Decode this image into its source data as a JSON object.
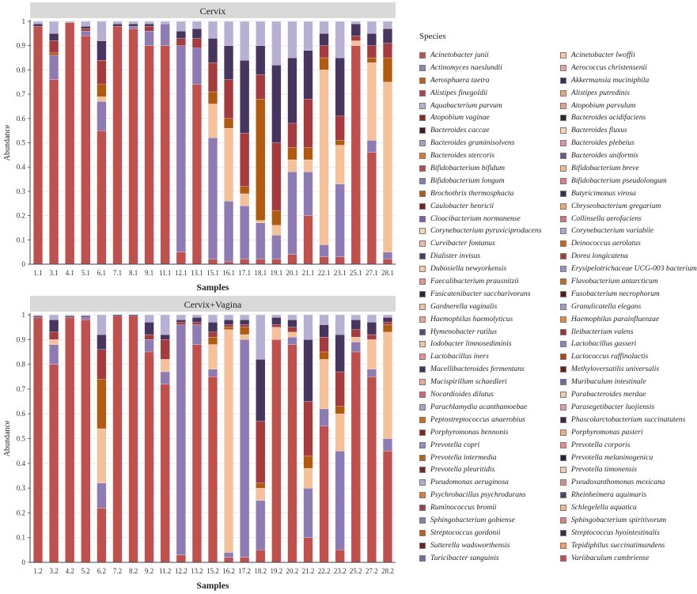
{
  "colors": {
    "panel_header_bg": "#d9d9d9",
    "axis": "#444444",
    "gridline": "#e6e6e6"
  },
  "legend": {
    "title": "Species",
    "items": [
      {
        "name": "Acinetobacter junii",
        "color": "#c0504d"
      },
      {
        "name": "Acinetobacter lwoffii",
        "color": "#f6c7a6"
      },
      {
        "name": "Actinomyces naeslundii",
        "color": "#9184b5"
      },
      {
        "name": "Aerococcus christensenii",
        "color": "#e8a2a6"
      },
      {
        "name": "Aerosphaera taetra",
        "color": "#c65c10"
      },
      {
        "name": "Akkermansia muciniphila",
        "color": "#3e2e57"
      },
      {
        "name": "Alistipes finegoldii",
        "color": "#b0404a"
      },
      {
        "name": "Alistipes putredinis",
        "color": "#eaa27e"
      },
      {
        "name": "Aquabacterium parvum",
        "color": "#b7b0d3"
      },
      {
        "name": "Atopobium parvulum",
        "color": "#f29b8b"
      },
      {
        "name": "Atopobium vaginae",
        "color": "#8b2a1a"
      },
      {
        "name": "Bacteroides acidifaciens",
        "color": "#2b2b2b"
      },
      {
        "name": "Bacteroides caccae",
        "color": "#4a1a22"
      },
      {
        "name": "Bacteroides fluxus",
        "color": "#f9d5b8"
      },
      {
        "name": "Bacteroides graminisolvens",
        "color": "#a99cc8"
      },
      {
        "name": "Bacteroides plebeius",
        "color": "#e3909a"
      },
      {
        "name": "Bacteroides stercoris",
        "color": "#e07726"
      },
      {
        "name": "Bacteroides uniformis",
        "color": "#6a5a8c"
      },
      {
        "name": "Bifidobacterium bifidum",
        "color": "#b9484c"
      },
      {
        "name": "Bifidobacterium breve",
        "color": "#f3b98e"
      },
      {
        "name": "Bifidobacterium longum",
        "color": "#8e7bb3"
      },
      {
        "name": "Bifidobacterium pseudolongum",
        "color": "#e37c82"
      },
      {
        "name": "Brochothrix thermosphacta",
        "color": "#b35a11"
      },
      {
        "name": "Butyricimonas virosa",
        "color": "#3f3050"
      },
      {
        "name": "Caulobacter henricii",
        "color": "#7a1f22"
      },
      {
        "name": "Chryseobacterium gregarium",
        "color": "#f3a56b"
      },
      {
        "name": "Cloacibacterium normanense",
        "color": "#7f5fa6"
      },
      {
        "name": "Collinsella aerofaciens",
        "color": "#d4707a"
      },
      {
        "name": "Corynebacterium pyruviciproducens",
        "color": "#fbd4b1"
      },
      {
        "name": "Corynebacterium variabile",
        "color": "#b3a5cf"
      },
      {
        "name": "Curvibacter fontanus",
        "color": "#f0b9a0"
      },
      {
        "name": "Deinococcus aerolatus",
        "color": "#d45f15"
      },
      {
        "name": "Dialister invisus",
        "color": "#4d3a6e"
      },
      {
        "name": "Dorea longicatena",
        "color": "#a63b3f"
      },
      {
        "name": "Dubosiella newyorkensis",
        "color": "#f8c9a2"
      },
      {
        "name": "Erysipelotrichaceae UCG-003 bacterium",
        "color": "#9d8fc2"
      },
      {
        "name": "Faecalibacterium prausnitzii",
        "color": "#e88f8f"
      },
      {
        "name": "Flavobacterium antarcticum",
        "color": "#c26b1e"
      },
      {
        "name": "Fusicatenibacter saccharivorans",
        "color": "#2f2442"
      },
      {
        "name": "Fusobacterium necrophorum",
        "color": "#5c1c1c"
      },
      {
        "name": "Gardnerella vaginalis",
        "color": "#f5c19a"
      },
      {
        "name": "Granulicatella elegans",
        "color": "#a497c9"
      },
      {
        "name": "Haemophilus haemolyticus",
        "color": "#f0a09a"
      },
      {
        "name": "Haemophilus parainfluenzae",
        "color": "#ef8a3a"
      },
      {
        "name": "Hymenobacter rutilus",
        "color": "#5b4985"
      },
      {
        "name": "Ileibacterium valens",
        "color": "#9d3337"
      },
      {
        "name": "Iodobacter limnosediminis",
        "color": "#f4c2a0"
      },
      {
        "name": "Lactobacillus gasseri",
        "color": "#8f82bd"
      },
      {
        "name": "Lactobacillus iners",
        "color": "#ec8f93"
      },
      {
        "name": "Lactococcus raffinolactis",
        "color": "#a9480f"
      },
      {
        "name": "Macellibacteroides fermentans",
        "color": "#473560"
      },
      {
        "name": "Methyloversatilis universalis",
        "color": "#6b1e1e"
      },
      {
        "name": "Mucispirillum schaedleri",
        "color": "#f3a28e"
      },
      {
        "name": "Muribaculum intestinale",
        "color": "#7866a3"
      },
      {
        "name": "Nocardioides dilutus",
        "color": "#d5656b"
      },
      {
        "name": "Parabacteroides merdae",
        "color": "#f7c8ab"
      },
      {
        "name": "Parachlamydia acanthamoebae",
        "color": "#ab9fcc"
      },
      {
        "name": "Parasegetibacter luojiensis",
        "color": "#e59aa2"
      },
      {
        "name": "Peptostreptococcus anaerobius",
        "color": "#d2681c"
      },
      {
        "name": "Phascolarctobacterium succinatutens",
        "color": "#39294f"
      },
      {
        "name": "Porphyromonas bennonis",
        "color": "#8a2527"
      },
      {
        "name": "Porphyromonas pasteri",
        "color": "#f4ae86"
      },
      {
        "name": "Prevotella copri",
        "color": "#9a88c4"
      },
      {
        "name": "Prevotella corporis",
        "color": "#e98b8b"
      },
      {
        "name": "Prevotella intermedia",
        "color": "#b8631a"
      },
      {
        "name": "Prevotella melaninogenica",
        "color": "#2a2036"
      },
      {
        "name": "Prevotella pleuritidis",
        "color": "#7d2628"
      },
      {
        "name": "Prevotella timonensis",
        "color": "#f7cca5"
      },
      {
        "name": "Pseudomonas aeruginosa",
        "color": "#b5a9d6"
      },
      {
        "name": "Pseudoxanthomonas mexicana",
        "color": "#df8790"
      },
      {
        "name": "Psychrobacillus psychrodurans",
        "color": "#e5762b"
      },
      {
        "name": "Rheinheimera aquimaris",
        "color": "#514274"
      },
      {
        "name": "Ruminococcus bromii",
        "color": "#a03d42"
      },
      {
        "name": "Schlegelella aquatica",
        "color": "#f5b48c"
      },
      {
        "name": "Sphingobacterium gobiense",
        "color": "#8b7ab6"
      },
      {
        "name": "Sphingobacterium spiritivorum",
        "color": "#e47f86"
      },
      {
        "name": "Streptococcus gordonii",
        "color": "#c55e12"
      },
      {
        "name": "Streptococcus hyointestinalis",
        "color": "#3a2c4f"
      },
      {
        "name": "Sutterella wadsworthensis",
        "color": "#6f1f21"
      },
      {
        "name": "Tepidiphilus succinatimandens",
        "color": "#f49a5c"
      },
      {
        "name": "Turicibacter sanguinis",
        "color": "#7c68a8"
      },
      {
        "name": "Variibaculum cambriense",
        "color": "#c9474d"
      }
    ]
  },
  "chart_data": [
    {
      "type": "bar",
      "stacked": true,
      "title": "Cervix",
      "xlabel": "Samples",
      "ylabel": "Abundance",
      "ylim": [
        0,
        1
      ],
      "yticks": [
        0,
        0.1,
        0.2,
        0.3,
        0.4,
        0.5,
        0.6,
        0.7,
        0.8,
        0.9,
        1
      ],
      "categories": [
        "1.1",
        "3.1",
        "4.1",
        "5.1",
        "6.1",
        "7.1",
        "8.1",
        "9.1",
        "11.1",
        "12.1",
        "13.1",
        "15.1",
        "16.1",
        "17.1",
        "18.1",
        "19.1",
        "20.1",
        "21.1",
        "22.1",
        "23.1",
        "25.1",
        "27.1",
        "28.1"
      ],
      "series": [
        {
          "name": "Acinetobacter junii",
          "values": [
            0.98,
            0.76,
            0.995,
            0.94,
            0.55,
            0.98,
            0.97,
            0.9,
            0.9,
            0.05,
            0.74,
            0.02,
            0.01,
            0.02,
            0.02,
            0.02,
            0.04,
            0.2,
            0.03,
            0.03,
            0.9,
            0.46,
            0.02
          ]
        },
        {
          "name": "Bifidobacterium longum",
          "values": [
            0,
            0.1,
            0,
            0.02,
            0.12,
            0,
            0.01,
            0.06,
            0.09,
            0.85,
            0.15,
            0.5,
            0.25,
            0.22,
            0.15,
            0.1,
            0.34,
            0.18,
            0.05,
            0.3,
            0,
            0.05,
            0.03
          ]
        },
        {
          "name": "Gardnerella vaginalis",
          "values": [
            0,
            0,
            0,
            0,
            0.02,
            0,
            0,
            0,
            0,
            0,
            0,
            0.14,
            0.3,
            0.05,
            0.01,
            0.04,
            0.05,
            0.05,
            0.72,
            0.16,
            0.02,
            0.32,
            0.7
          ]
        },
        {
          "name": "Brochothrix thermosphacta",
          "values": [
            0,
            0.01,
            0,
            0,
            0.05,
            0,
            0,
            0,
            0,
            0,
            0,
            0.05,
            0.04,
            0.03,
            0.5,
            0.06,
            0.05,
            0.05,
            0.05,
            0.02,
            0,
            0.02,
            0.1
          ]
        },
        {
          "name": "Dorea longicatena",
          "values": [
            0,
            0.05,
            0,
            0.01,
            0.1,
            0,
            0,
            0.02,
            0,
            0.03,
            0.04,
            0.12,
            0.16,
            0.22,
            0.1,
            0.28,
            0.1,
            0.2,
            0.05,
            0.1,
            0.02,
            0.05,
            0.06
          ]
        },
        {
          "name": "Macellibacteroides fermentans",
          "values": [
            0.01,
            0.03,
            0,
            0.01,
            0.08,
            0.01,
            0.01,
            0.01,
            0,
            0.03,
            0.04,
            0.1,
            0.14,
            0.3,
            0.12,
            0.32,
            0.27,
            0.2,
            0.05,
            0.24,
            0.05,
            0.05,
            0.06
          ]
        },
        {
          "name": "Aquabacterium parvum",
          "values": [
            0.01,
            0.05,
            0.005,
            0.02,
            0.08,
            0.01,
            0.01,
            0.01,
            0.01,
            0.04,
            0.03,
            0.07,
            0.1,
            0.16,
            0.1,
            0.18,
            0.15,
            0.12,
            0.05,
            0.15,
            0.01,
            0.05,
            0.03
          ]
        }
      ]
    },
    {
      "type": "bar",
      "stacked": true,
      "title": "Cervix+Vagina",
      "xlabel": "Samples",
      "ylabel": "Abundance",
      "ylim": [
        0,
        1
      ],
      "yticks": [
        0,
        0.1,
        0.2,
        0.3,
        0.4,
        0.5,
        0.6,
        0.7,
        0.8,
        0.9,
        1
      ],
      "categories": [
        "1.2",
        "3.2",
        "4.2",
        "5.2",
        "6.2",
        "7.2",
        "8.2",
        "9.2",
        "11.2",
        "12.2",
        "13.2",
        "15.2",
        "16.2",
        "17.2",
        "18.2",
        "19.2",
        "20.2",
        "21.2",
        "22.2",
        "23.2",
        "25.2",
        "27.2",
        "28.2"
      ],
      "series": [
        {
          "name": "Acinetobacter junii",
          "values": [
            0.99,
            0.8,
            0.99,
            0.98,
            0.22,
            0.995,
            0.995,
            0.85,
            0.72,
            0.03,
            0.88,
            0.75,
            0.02,
            0.02,
            0.05,
            0.9,
            0.88,
            0.1,
            0.55,
            0.05,
            0.85,
            0.75,
            0.45
          ]
        },
        {
          "name": "Bifidobacterium longum",
          "values": [
            0,
            0.08,
            0,
            0.01,
            0.1,
            0,
            0,
            0.05,
            0.05,
            0.93,
            0.08,
            0.03,
            0.02,
            0.88,
            0.2,
            0,
            0.03,
            0.2,
            0.07,
            0.4,
            0.04,
            0.03,
            0.05
          ]
        },
        {
          "name": "Gardnerella vaginalis",
          "values": [
            0,
            0.02,
            0,
            0,
            0.22,
            0,
            0,
            0,
            0.05,
            0,
            0,
            0.1,
            0.9,
            0.02,
            0.05,
            0.05,
            0.02,
            0.08,
            0.2,
            0.15,
            0.02,
            0.12,
            0.43
          ]
        },
        {
          "name": "Brochothrix thermosphacta",
          "values": [
            0,
            0,
            0,
            0,
            0.2,
            0,
            0,
            0,
            0,
            0,
            0,
            0.03,
            0.01,
            0.03,
            0.02,
            0,
            0,
            0.05,
            0.03,
            0.03,
            0,
            0,
            0.03
          ]
        },
        {
          "name": "Dorea longicatena",
          "values": [
            0,
            0.03,
            0,
            0,
            0.12,
            0,
            0,
            0.02,
            0.08,
            0.01,
            0.01,
            0.02,
            0.01,
            0.01,
            0.25,
            0.01,
            0.02,
            0.22,
            0.06,
            0.14,
            0.03,
            0.02,
            0.01
          ]
        },
        {
          "name": "Macellibacteroides fermentans",
          "values": [
            0.005,
            0.05,
            0.005,
            0.005,
            0.06,
            0.005,
            0.005,
            0.05,
            0.02,
            0.01,
            0.02,
            0.04,
            0.02,
            0.02,
            0.25,
            0.03,
            0.03,
            0.25,
            0.05,
            0.15,
            0.04,
            0.05,
            0.02
          ]
        },
        {
          "name": "Aquabacterium parvum",
          "values": [
            0.005,
            0.02,
            0.005,
            0.005,
            0.08,
            0,
            0,
            0.03,
            0.08,
            0.02,
            0.01,
            0.03,
            0.02,
            0.02,
            0.18,
            0.01,
            0.02,
            0.1,
            0.04,
            0.08,
            0.02,
            0.03,
            0.01
          ]
        }
      ]
    }
  ]
}
